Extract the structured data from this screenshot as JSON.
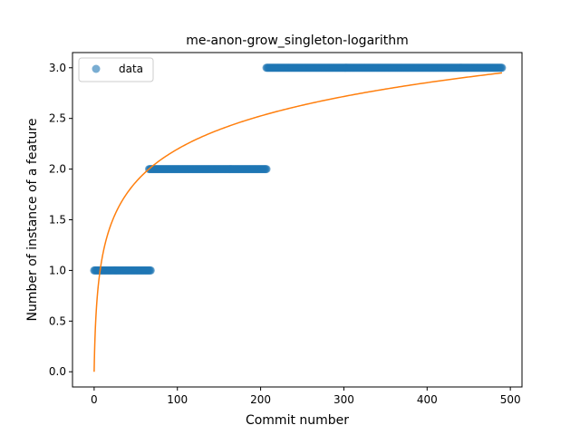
{
  "chart_data": {
    "type": "scatter",
    "title": "me-anon-grow_singleton-logarithm",
    "xlabel": "Commit number",
    "ylabel": "Number of instance of a feature",
    "xlim": [
      -26,
      514
    ],
    "ylim": [
      -0.15,
      3.15
    ],
    "xticks": [
      0,
      100,
      200,
      300,
      400,
      500
    ],
    "yticks": [
      0.0,
      0.5,
      1.0,
      1.5,
      2.0,
      2.5,
      3.0
    ],
    "xtick_labels": [
      "0",
      "100",
      "200",
      "300",
      "400",
      "500"
    ],
    "ytick_labels": [
      "0.0",
      "0.5",
      "1.0",
      "1.5",
      "2.0",
      "2.5",
      "3.0"
    ],
    "grid": false,
    "legend": {
      "position": "upper-left",
      "entries": [
        "data"
      ]
    },
    "series": [
      {
        "name": "data",
        "kind": "scatter",
        "color": "#1f77b4",
        "segments": [
          {
            "x_start": 0,
            "x_end": 68,
            "y": 1
          },
          {
            "x_start": 66,
            "x_end": 207,
            "y": 2
          },
          {
            "x_start": 207,
            "x_end": 490,
            "y": 3
          }
        ]
      },
      {
        "kind": "line",
        "color": "#ff7f0e",
        "model": "y = a * ln(1 + x)",
        "a": 0.476,
        "x_range": [
          0,
          490
        ]
      }
    ]
  }
}
